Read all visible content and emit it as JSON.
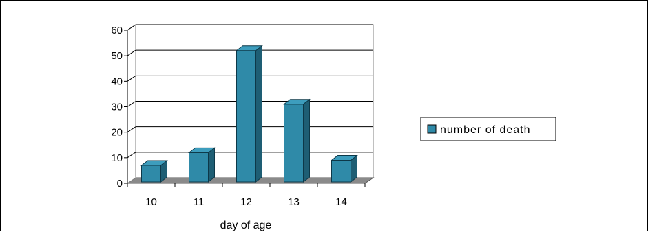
{
  "chart_data": {
    "type": "bar",
    "style": "3d-column",
    "categories": [
      "10",
      "11",
      "12",
      "13",
      "14"
    ],
    "series": [
      {
        "name": "number of death",
        "values": [
          7,
          12,
          52,
          31,
          9
        ]
      }
    ],
    "title": "",
    "xlabel": "day of age",
    "ylabel": "",
    "ylim": [
      0,
      60
    ],
    "yticks": [
      0,
      10,
      20,
      30,
      40,
      50,
      60
    ],
    "grid": true,
    "legend": "right",
    "colors": {
      "bar_front": "#2f8aa8",
      "bar_side": "#1e5e74",
      "bar_top": "#3d9dbd",
      "floor": "#8a8a8a",
      "gridline": "#000000"
    }
  }
}
